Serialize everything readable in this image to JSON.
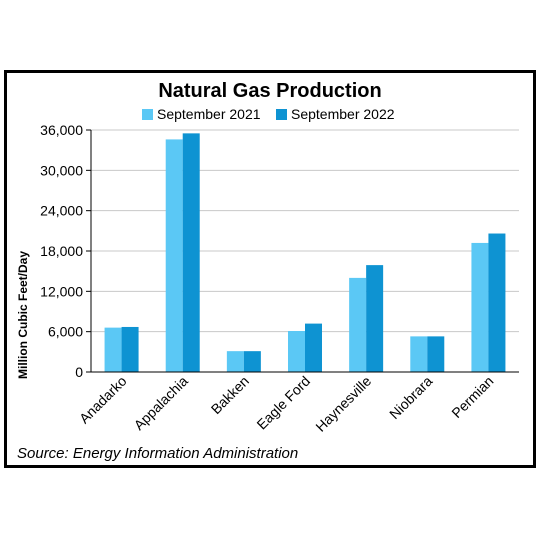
{
  "chart_data": {
    "type": "bar",
    "title": "Natural Gas Production",
    "ylabel": "Million Cubic Feet/Day",
    "xlabel": "",
    "categories": [
      "Anadarko",
      "Appalachia",
      "Bakken",
      "Eagle Ford",
      "Haynesville",
      "Niobrara",
      "Permian"
    ],
    "series": [
      {
        "name": "September 2021",
        "color": "#5bc8f5",
        "values": [
          6600,
          34600,
          3100,
          6100,
          14000,
          5300,
          19200
        ]
      },
      {
        "name": "September 2022",
        "color": "#0e93d2",
        "values": [
          6700,
          35500,
          3100,
          7200,
          15900,
          5300,
          20600
        ]
      }
    ],
    "ylim": [
      0,
      36000
    ],
    "yticks": [
      0,
      6000,
      12000,
      18000,
      24000,
      30000,
      36000
    ],
    "ytick_labels": [
      "0",
      "6,000",
      "12,000",
      "18,000",
      "24,000",
      "30,000",
      "36,000"
    ],
    "grid": true,
    "legend_position": "top",
    "source": "Source: Energy Information Administration"
  }
}
